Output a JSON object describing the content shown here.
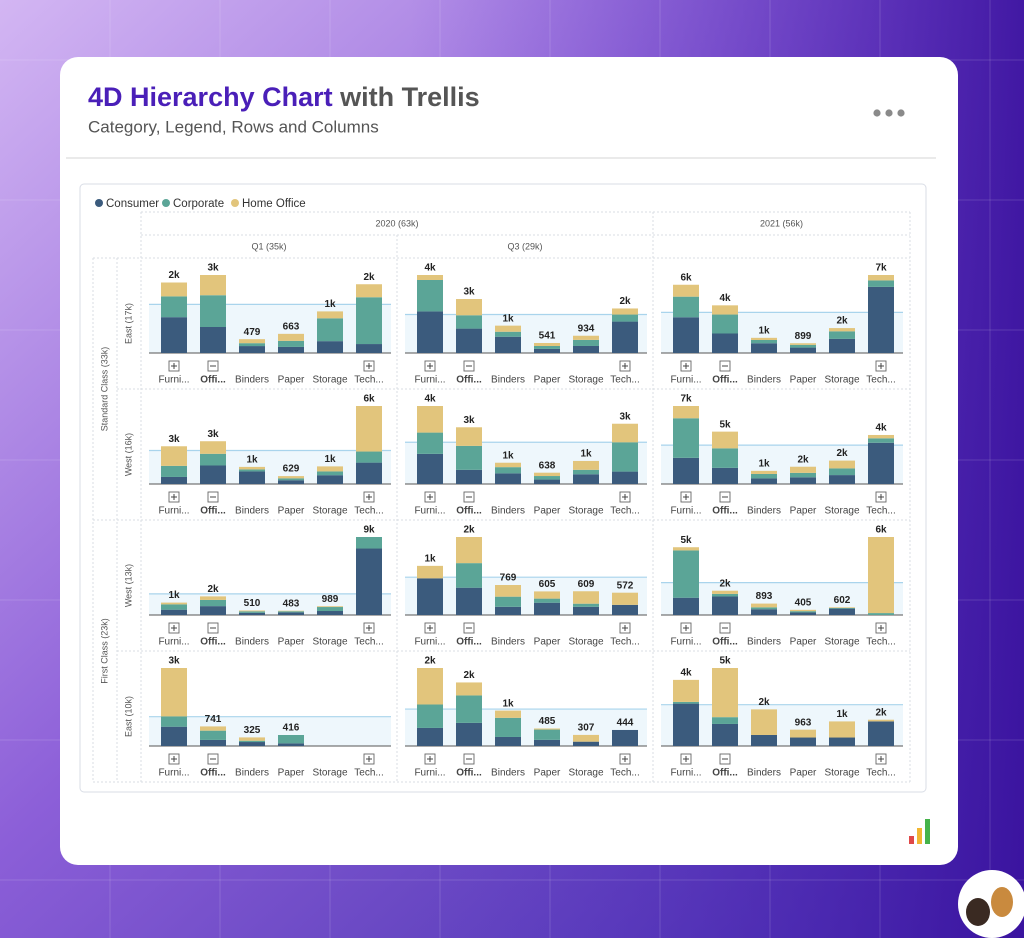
{
  "header": {
    "title_accent": "4D Hierarchy Chart",
    "title_rest": "with Trellis",
    "subtitle": "Category, Legend, Rows and Columns"
  },
  "chart_data": {
    "type": "bar",
    "stacked": true,
    "legend_position": "top-left",
    "reference_line": "mean",
    "series": [
      {
        "name": "Consumer",
        "color": "#3b5b7d"
      },
      {
        "name": "Corporate",
        "color": "#5ba597"
      },
      {
        "name": "Home Office",
        "color": "#e2c57c"
      }
    ],
    "columns": [
      {
        "label": "2020 (63k)",
        "children": [
          "Q1 (35k)",
          "Q3 (29k)"
        ]
      },
      {
        "label": "2021 (56k)",
        "children": [
          null
        ]
      }
    ],
    "rows": [
      {
        "label": "Standard Class (33k)",
        "children": [
          "East (17k)",
          "West (16k)"
        ]
      },
      {
        "label": "First Class (23k)",
        "children": [
          "West (13k)",
          "East (10k)"
        ]
      }
    ],
    "categories": [
      "Furni...",
      "Offi...",
      "Binders",
      "Paper",
      "Storage",
      "Tech..."
    ],
    "hierarchy": [
      "collapsed",
      "expanded",
      null,
      null,
      null,
      "collapsed"
    ],
    "panels": [
      [
        {
          "values": [
            [
              1240,
              900,
              240,
              210,
              410,
              310
            ],
            [
              720,
              1100,
              100,
              210,
              790,
              1620
            ],
            [
              480,
              700,
              139,
              243,
              240,
              450
            ]
          ],
          "totals": [
            2440,
            2700,
            479,
            663,
            1440,
            2380
          ],
          "total_labels": [
            "2k",
            "3k",
            "479",
            "663",
            "1k",
            "2k"
          ]
        },
        {
          "values": [
            [
              2250,
              1320,
              880,
              220,
              380,
              1700
            ],
            [
              1700,
              720,
              270,
              160,
              330,
              380
            ],
            [
              270,
              880,
              330,
              161,
              224,
              330
            ]
          ],
          "totals": [
            4220,
            2920,
            1480,
            541,
            934,
            2410
          ],
          "total_labels": [
            "4k",
            "3k",
            "1k",
            "541",
            "934",
            "2k"
          ]
        },
        {
          "values": [
            [
              3300,
              1800,
              900,
              500,
              1300,
              6100
            ],
            [
              1900,
              1750,
              300,
              250,
              700,
              600
            ],
            [
              1100,
              850,
              200,
              149,
              300,
              500
            ]
          ],
          "totals": [
            6300,
            4400,
            1400,
            899,
            2300,
            7200
          ],
          "total_labels": [
            "6k",
            "4k",
            "1k",
            "899",
            "2k",
            "7k"
          ]
        }
      ],
      [
        {
          "values": [
            [
              560,
              1470,
              1000,
              300,
              700,
              1700
            ],
            [
              880,
              930,
              160,
              150,
              300,
              880
            ],
            [
              1560,
              1000,
              200,
              179,
              400,
              3620
            ]
          ],
          "totals": [
            3000,
            3400,
            1360,
            629,
            1400,
            6200
          ],
          "total_labels": [
            "3k",
            "3k",
            "1k",
            "629",
            "1k",
            "6k"
          ]
        },
        {
          "values": [
            [
              1700,
              800,
              600,
              250,
              550,
              700
            ],
            [
              1200,
              1350,
              350,
              200,
              250,
              1650
            ],
            [
              1500,
              1050,
              250,
              188,
              500,
              1050
            ]
          ],
          "totals": [
            4400,
            3200,
            1200,
            638,
            1300,
            3400
          ],
          "total_labels": [
            "4k",
            "3k",
            "1k",
            "638",
            "1k",
            "3k"
          ]
        },
        {
          "values": [
            [
              2350,
              1450,
              500,
              600,
              800,
              3700
            ],
            [
              3550,
              1750,
              400,
              400,
              600,
              400
            ],
            [
              1100,
              1500,
              280,
              550,
              700,
              300
            ]
          ],
          "totals": [
            7000,
            4700,
            1180,
            1550,
            2100,
            4400
          ],
          "total_labels": [
            "7k",
            "5k",
            "1k",
            "2k",
            "2k",
            "4k"
          ]
        }
      ],
      [
        {
          "values": [
            [
              600,
              1000,
              250,
              300,
              450,
              7500
            ],
            [
              600,
              700,
              160,
              120,
              450,
              1300
            ],
            [
              200,
              400,
              100,
              63,
              89,
              0
            ]
          ],
          "totals": [
            1400,
            2100,
            510,
            483,
            989,
            8800
          ],
          "total_labels": [
            "1k",
            "2k",
            "510",
            "483",
            "989",
            "9k"
          ]
        },
        {
          "values": [
            [
              940,
              700,
              210,
              315,
              210,
              260
            ],
            [
              0,
              630,
              260,
              105,
              80,
              0
            ],
            [
              320,
              670,
              299,
              185,
              319,
              312
            ]
          ],
          "totals": [
            1260,
            2000,
            769,
            605,
            609,
            572
          ],
          "total_labels": [
            "1k",
            "2k",
            "769",
            "605",
            "609",
            "572"
          ]
        },
        {
          "values": [
            [
              1350,
              1450,
              450,
              200,
              500,
              0
            ],
            [
              3700,
              200,
              150,
              100,
              50,
              150
            ],
            [
              250,
              250,
              293,
              105,
              52,
              5950
            ]
          ],
          "totals": [
            5300,
            1900,
            893,
            405,
            602,
            6100
          ],
          "total_labels": [
            "5k",
            "2k",
            "893",
            "405",
            "602",
            "6k"
          ]
        }
      ],
      [
        {
          "values": [
            [
              730,
              230,
              150,
              100,
              null,
              null
            ],
            [
              390,
              350,
              50,
              316,
              null,
              null
            ],
            [
              1830,
              161,
              125,
              0,
              null,
              null
            ]
          ],
          "totals": [
            2950,
            741,
            325,
            416,
            null,
            null
          ],
          "total_labels": [
            "3k",
            "741",
            "325",
            "416",
            null,
            null
          ]
        },
        {
          "values": [
            [
              500,
              640,
              250,
              170,
              120,
              444
            ],
            [
              650,
              760,
              530,
              285,
              0,
              0
            ],
            [
              1010,
              360,
              200,
              30,
              187,
              0
            ]
          ],
          "totals": [
            2160,
            1760,
            980,
            485,
            307,
            444
          ],
          "total_labels": [
            "2k",
            "2k",
            "1k",
            "485",
            "307",
            "444"
          ]
        },
        {
          "values": [
            [
              2500,
              1300,
              650,
              500,
              500,
              1450
            ],
            [
              100,
              400,
              0,
              0,
              0,
              0
            ],
            [
              1300,
              2900,
              1510,
              463,
              950,
              100
            ]
          ],
          "totals": [
            3900,
            4600,
            2160,
            963,
            1450,
            1550
          ],
          "total_labels": [
            "4k",
            "5k",
            "2k",
            "963",
            "1k",
            "2k"
          ]
        }
      ]
    ]
  }
}
